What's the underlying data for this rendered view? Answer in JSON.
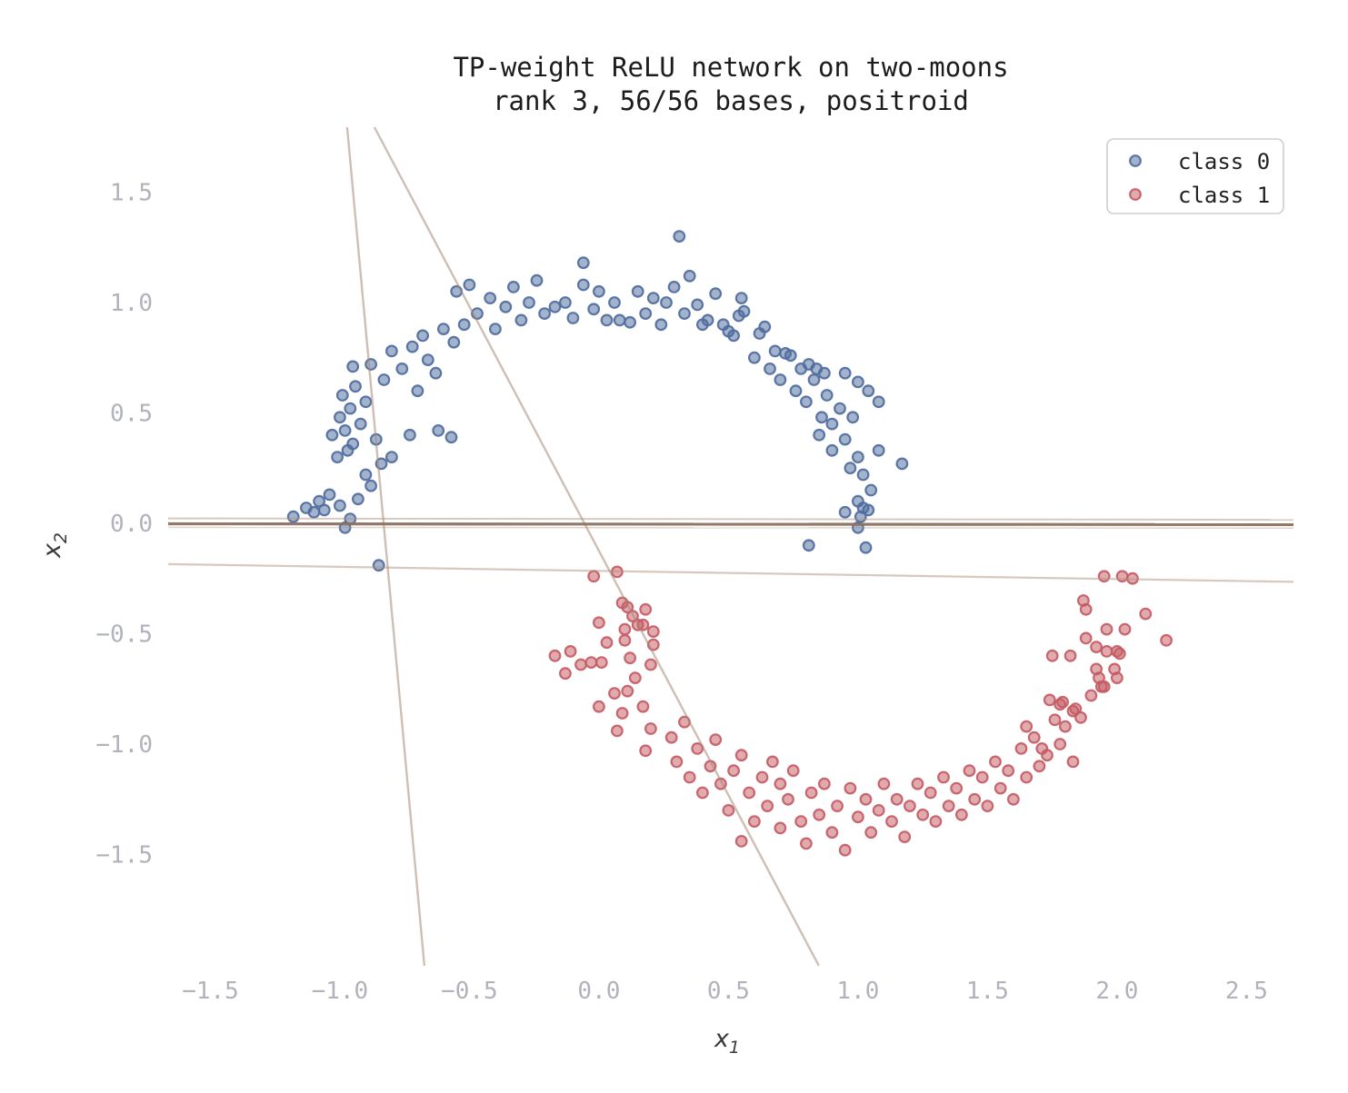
{
  "figure": {
    "title_line1": "TP-weight ReLU network on two-moons",
    "title_line2": "rank 3, 56/56 bases, positroid",
    "xlabel_base": "x",
    "xlabel_sub": "1",
    "ylabel_base": "x",
    "ylabel_sub": "2"
  },
  "colors": {
    "background": "#ffffff",
    "title": "#1c1c1c",
    "tick_label": "#b0b3bb",
    "class0": "#4f6d9e",
    "class1": "#c45c63",
    "hyperplane_faint": "#b29482",
    "hyperplane_dark": "#8b7161",
    "legend_border": "#cfcfcf"
  },
  "chart_data": {
    "type": "scatter",
    "title": "TP-weight ReLU network on two-moons",
    "subtitle": "rank 3, 56/56 bases, positroid",
    "xlabel": "x_1",
    "ylabel": "x_2",
    "xlim": [
      -1.663,
      2.681
    ],
    "ylim": [
      -2.004,
      1.794
    ],
    "grid": false,
    "legend_position": "upper right",
    "x_tick_values": [
      -1.5,
      -1.0,
      -0.5,
      0.0,
      0.5,
      1.0,
      1.5,
      2.0,
      2.5
    ],
    "x_tick_labels": [
      "−1.5",
      "−1.0",
      "−0.5",
      "0.0",
      "0.5",
      "1.0",
      "1.5",
      "2.0",
      "2.5"
    ],
    "y_tick_values": [
      -1.5,
      -1.0,
      -0.5,
      0.0,
      0.5,
      1.0,
      1.5
    ],
    "y_tick_labels": [
      "−1.5",
      "−1.0",
      "−0.5",
      "0.0",
      "0.5",
      "1.0",
      "1.5"
    ],
    "lines": [
      {
        "name": "hyperplane-sloped-faint",
        "x1": -1.663,
        "y1": -0.185,
        "x2": 2.681,
        "y2": -0.265,
        "color": "rgba(178,148,130,0.50)",
        "width": 2.2
      },
      {
        "name": "hyperplane-steep-left",
        "x1": -0.972,
        "y1": 1.794,
        "x2": -0.674,
        "y2": -2.004,
        "color": "rgba(168,136,118,0.55)",
        "width": 2.4
      },
      {
        "name": "hyperplane-diagonal",
        "x1": -0.867,
        "y1": 1.794,
        "x2": 0.849,
        "y2": -2.004,
        "color": "rgba(168,136,118,0.55)",
        "width": 2.4
      },
      {
        "name": "hyperplane-zero-upper",
        "x1": -1.663,
        "y1": 0.022,
        "x2": 2.681,
        "y2": 0.016,
        "color": "rgba(178,148,130,0.50)",
        "width": 2.0
      },
      {
        "name": "hyperplane-zero-dark",
        "x1": -1.663,
        "y1": -0.002,
        "x2": 2.681,
        "y2": -0.006,
        "color": "rgba(139,113,97,0.95)",
        "width": 3.2
      },
      {
        "name": "hyperplane-zero-lower",
        "x1": -1.663,
        "y1": -0.018,
        "x2": 2.681,
        "y2": -0.022,
        "color": "rgba(178,148,130,0.40)",
        "width": 1.5
      }
    ],
    "series": [
      {
        "name": "class 0",
        "color": "#4f6d9e",
        "points": [
          [
            -1.18,
            0.03
          ],
          [
            -1.13,
            0.07
          ],
          [
            -1.08,
            0.1
          ],
          [
            -1.1,
            0.05
          ],
          [
            -1.04,
            0.13
          ],
          [
            -1.0,
            0.08
          ],
          [
            -0.98,
            -0.02
          ],
          [
            -0.96,
            0.02
          ],
          [
            -1.06,
            0.06
          ],
          [
            -0.93,
            0.11
          ],
          [
            -0.85,
            -0.19
          ],
          [
            -1.01,
            0.3
          ],
          [
            -0.97,
            0.33
          ],
          [
            -0.95,
            0.36
          ],
          [
            -1.03,
            0.4
          ],
          [
            -0.98,
            0.42
          ],
          [
            -0.92,
            0.45
          ],
          [
            -1.0,
            0.48
          ],
          [
            -0.96,
            0.52
          ],
          [
            -0.9,
            0.55
          ],
          [
            -0.99,
            0.58
          ],
          [
            -0.94,
            0.62
          ],
          [
            -0.88,
            0.17
          ],
          [
            -0.9,
            0.22
          ],
          [
            -0.86,
            0.38
          ],
          [
            -0.84,
            0.27
          ],
          [
            -0.8,
            0.3
          ],
          [
            -0.95,
            0.71
          ],
          [
            -0.88,
            0.72
          ],
          [
            -0.83,
            0.65
          ],
          [
            -0.8,
            0.78
          ],
          [
            -0.76,
            0.7
          ],
          [
            -0.7,
            0.6
          ],
          [
            -0.72,
            0.8
          ],
          [
            -0.68,
            0.85
          ],
          [
            -0.66,
            0.74
          ],
          [
            -0.63,
            0.68
          ],
          [
            -0.6,
            0.88
          ],
          [
            -0.56,
            0.82
          ],
          [
            -0.52,
            0.9
          ],
          [
            -0.55,
            1.05
          ],
          [
            -0.5,
            1.08
          ],
          [
            -0.47,
            0.95
          ],
          [
            -0.73,
            0.4
          ],
          [
            -0.62,
            0.42
          ],
          [
            -0.57,
            0.39
          ],
          [
            -0.42,
            1.02
          ],
          [
            -0.4,
            0.88
          ],
          [
            -0.36,
            0.98
          ],
          [
            -0.33,
            1.07
          ],
          [
            -0.3,
            0.92
          ],
          [
            -0.27,
            1.0
          ],
          [
            -0.24,
            1.1
          ],
          [
            -0.21,
            0.95
          ],
          [
            -0.17,
            0.98
          ],
          [
            -0.13,
            1.0
          ],
          [
            -0.1,
            0.93
          ],
          [
            -0.06,
            1.18
          ],
          [
            -0.06,
            1.08
          ],
          [
            -0.02,
            0.97
          ],
          [
            0.0,
            1.05
          ],
          [
            0.03,
            0.92
          ],
          [
            0.06,
            1.0
          ],
          [
            0.08,
            0.92
          ],
          [
            0.12,
            0.91
          ],
          [
            0.15,
            1.05
          ],
          [
            0.18,
            0.95
          ],
          [
            0.21,
            1.02
          ],
          [
            0.24,
            0.9
          ],
          [
            0.26,
            1.0
          ],
          [
            0.29,
            1.07
          ],
          [
            0.31,
            1.3
          ],
          [
            0.33,
            0.95
          ],
          [
            0.35,
            1.12
          ],
          [
            0.38,
            0.99
          ],
          [
            0.4,
            0.9
          ],
          [
            0.42,
            0.92
          ],
          [
            0.45,
            1.04
          ],
          [
            0.48,
            0.9
          ],
          [
            0.5,
            0.87
          ],
          [
            0.52,
            0.85
          ],
          [
            0.54,
            0.94
          ],
          [
            0.55,
            1.02
          ],
          [
            0.56,
            0.96
          ],
          [
            0.6,
            0.75
          ],
          [
            0.62,
            0.86
          ],
          [
            0.64,
            0.89
          ],
          [
            0.66,
            0.7
          ],
          [
            0.68,
            0.78
          ],
          [
            0.7,
            0.65
          ],
          [
            0.72,
            0.77
          ],
          [
            0.74,
            0.76
          ],
          [
            0.76,
            0.6
          ],
          [
            0.78,
            0.7
          ],
          [
            0.81,
            0.72
          ],
          [
            0.84,
            0.7
          ],
          [
            0.87,
            0.68
          ],
          [
            0.8,
            0.55
          ],
          [
            0.83,
            0.65
          ],
          [
            0.86,
            0.48
          ],
          [
            0.88,
            0.58
          ],
          [
            0.9,
            0.45
          ],
          [
            0.93,
            0.52
          ],
          [
            0.95,
            0.68
          ],
          [
            0.95,
            0.38
          ],
          [
            0.98,
            0.48
          ],
          [
            1.0,
            0.64
          ],
          [
            1.04,
            0.6
          ],
          [
            1.08,
            0.55
          ],
          [
            1.0,
            0.3
          ],
          [
            1.02,
            0.22
          ],
          [
            0.97,
            0.25
          ],
          [
            1.05,
            0.15
          ],
          [
            1.0,
            0.1
          ],
          [
            1.17,
            0.27
          ],
          [
            1.08,
            0.33
          ],
          [
            0.95,
            0.05
          ],
          [
            1.02,
            0.07
          ],
          [
            1.04,
            0.06
          ],
          [
            1.01,
            0.03
          ],
          [
            1.0,
            -0.02
          ],
          [
            0.81,
            -0.1
          ],
          [
            1.03,
            -0.11
          ],
          [
            0.9,
            0.33
          ],
          [
            0.85,
            0.4
          ]
        ]
      },
      {
        "name": "class 1",
        "color": "#c45c63",
        "points": [
          [
            -0.17,
            -0.6
          ],
          [
            -0.13,
            -0.68
          ],
          [
            -0.11,
            -0.58
          ],
          [
            -0.07,
            -0.64
          ],
          [
            -0.03,
            -0.63
          ],
          [
            0.0,
            -0.45
          ],
          [
            0.01,
            -0.63
          ],
          [
            -0.02,
            -0.24
          ],
          [
            0.07,
            -0.22
          ],
          [
            0.09,
            -0.36
          ],
          [
            0.11,
            -0.38
          ],
          [
            0.13,
            -0.42
          ],
          [
            0.18,
            -0.39
          ],
          [
            0.03,
            -0.54
          ],
          [
            0.1,
            -0.53
          ],
          [
            0.21,
            -0.55
          ],
          [
            0.1,
            -0.48
          ],
          [
            0.15,
            -0.46
          ],
          [
            0.17,
            -0.46
          ],
          [
            0.21,
            -0.49
          ],
          [
            0.12,
            -0.61
          ],
          [
            0.2,
            -0.64
          ],
          [
            0.06,
            -0.77
          ],
          [
            0.11,
            -0.76
          ],
          [
            0.0,
            -0.83
          ],
          [
            0.07,
            -0.94
          ],
          [
            0.09,
            -0.86
          ],
          [
            0.17,
            -0.83
          ],
          [
            0.2,
            -0.93
          ],
          [
            0.18,
            -1.03
          ],
          [
            0.14,
            -0.7
          ],
          [
            0.28,
            -0.97
          ],
          [
            0.3,
            -1.08
          ],
          [
            0.33,
            -0.9
          ],
          [
            0.35,
            -1.15
          ],
          [
            0.38,
            -1.02
          ],
          [
            0.4,
            -1.22
          ],
          [
            0.43,
            -1.1
          ],
          [
            0.45,
            -0.98
          ],
          [
            0.47,
            -1.18
          ],
          [
            0.5,
            -1.3
          ],
          [
            0.52,
            -1.12
          ],
          [
            0.55,
            -1.44
          ],
          [
            0.55,
            -1.05
          ],
          [
            0.58,
            -1.22
          ],
          [
            0.6,
            -1.35
          ],
          [
            0.63,
            -1.15
          ],
          [
            0.65,
            -1.28
          ],
          [
            0.67,
            -1.08
          ],
          [
            0.7,
            -1.38
          ],
          [
            0.7,
            -1.18
          ],
          [
            0.73,
            -1.25
          ],
          [
            0.75,
            -1.12
          ],
          [
            0.78,
            -1.35
          ],
          [
            0.8,
            -1.45
          ],
          [
            0.82,
            -1.22
          ],
          [
            0.85,
            -1.32
          ],
          [
            0.87,
            -1.18
          ],
          [
            0.9,
            -1.4
          ],
          [
            0.92,
            -1.28
          ],
          [
            0.95,
            -1.48
          ],
          [
            0.97,
            -1.2
          ],
          [
            1.0,
            -1.33
          ],
          [
            1.03,
            -1.25
          ],
          [
            1.05,
            -1.4
          ],
          [
            1.08,
            -1.3
          ],
          [
            1.1,
            -1.18
          ],
          [
            1.13,
            -1.35
          ],
          [
            1.15,
            -1.25
          ],
          [
            1.18,
            -1.42
          ],
          [
            1.2,
            -1.28
          ],
          [
            1.23,
            -1.18
          ],
          [
            1.25,
            -1.32
          ],
          [
            1.28,
            -1.22
          ],
          [
            1.3,
            -1.35
          ],
          [
            1.33,
            -1.15
          ],
          [
            1.35,
            -1.28
          ],
          [
            1.38,
            -1.2
          ],
          [
            1.4,
            -1.32
          ],
          [
            1.43,
            -1.12
          ],
          [
            1.45,
            -1.25
          ],
          [
            1.48,
            -1.15
          ],
          [
            1.5,
            -1.28
          ],
          [
            1.53,
            -1.08
          ],
          [
            1.55,
            -1.2
          ],
          [
            1.58,
            -1.12
          ],
          [
            1.6,
            -1.25
          ],
          [
            1.63,
            -1.02
          ],
          [
            1.65,
            -1.15
          ],
          [
            1.65,
            -0.92
          ],
          [
            1.68,
            -0.97
          ],
          [
            1.71,
            -1.02
          ],
          [
            1.7,
            -1.1
          ],
          [
            1.75,
            -0.6
          ],
          [
            1.82,
            -0.6
          ],
          [
            1.74,
            -0.8
          ],
          [
            1.78,
            -0.82
          ],
          [
            1.79,
            -0.81
          ],
          [
            1.83,
            -0.85
          ],
          [
            1.84,
            -0.84
          ],
          [
            1.76,
            -0.89
          ],
          [
            1.86,
            -0.88
          ],
          [
            1.87,
            -0.35
          ],
          [
            1.88,
            -0.39
          ],
          [
            1.88,
            -0.52
          ],
          [
            1.9,
            -0.78
          ],
          [
            1.92,
            -0.56
          ],
          [
            1.92,
            -0.66
          ],
          [
            1.93,
            -0.7
          ],
          [
            1.94,
            -0.74
          ],
          [
            1.95,
            -0.74
          ],
          [
            1.95,
            -0.24
          ],
          [
            1.96,
            -0.48
          ],
          [
            1.96,
            -0.58
          ],
          [
            1.99,
            -0.66
          ],
          [
            2.0,
            -0.58
          ],
          [
            2.0,
            -0.7
          ],
          [
            2.01,
            -0.59
          ],
          [
            2.02,
            -0.24
          ],
          [
            2.03,
            -0.48
          ],
          [
            2.06,
            -0.25
          ],
          [
            2.11,
            -0.41
          ],
          [
            2.19,
            -0.53
          ],
          [
            1.73,
            -1.05
          ],
          [
            1.78,
            -1.0
          ],
          [
            1.8,
            -0.92
          ],
          [
            1.83,
            -1.08
          ]
        ]
      }
    ]
  }
}
